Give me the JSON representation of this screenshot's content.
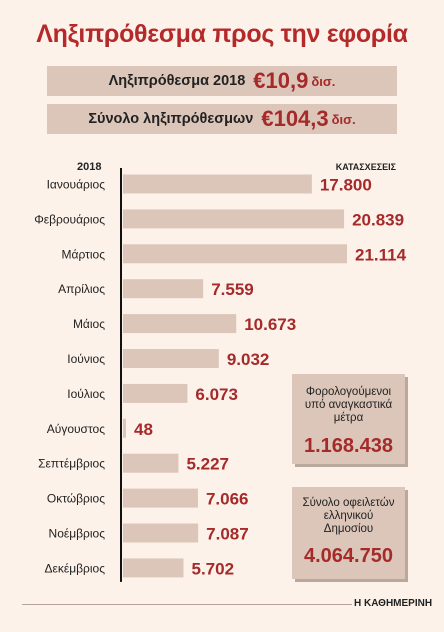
{
  "title": "Ληξιπρόθεσμα προς την εφορία",
  "stat1": {
    "label": "Ληξιπρόθεσμα 2018",
    "value": "€10,9",
    "unit": "δισ."
  },
  "stat2": {
    "label": "Σύνολο ληξιπρόθεσμων",
    "value": "€104,3",
    "unit": "δισ."
  },
  "year_label": "2018",
  "column_header": "ΚΑΤΑΣΧΕΣΕΙΣ",
  "side1": {
    "label": "Φορολογούμενοι υπό αναγκαστικά μέτρα",
    "value": "1.168.438"
  },
  "side2": {
    "label": "Σύνολο οφειλετών ελληνικού Δημοσίου",
    "value": "4.064.750"
  },
  "source": "Η ΚΑΘΗΜΕΡΙΝΗ",
  "colors": {
    "bar": "#dcc6b9",
    "accent": "#a52a2a",
    "axis": "#111111"
  },
  "chart_data": {
    "type": "bar",
    "orientation": "horizontal",
    "title": "",
    "xlabel": "",
    "ylabel": "",
    "categories": [
      "Ιανουάριος",
      "Φεβρουάριος",
      "Μάρτιος",
      "Απρίλιος",
      "Μάιος",
      "Ιούνιος",
      "Ιούλιος",
      "Αύγουστος",
      "Σεπτέμβριος",
      "Οκτώβριος",
      "Νοέμβριος",
      "Δεκέμβριος"
    ],
    "values": [
      17800,
      20839,
      21114,
      7559,
      10673,
      9032,
      6073,
      48,
      5227,
      7066,
      7087,
      5702
    ],
    "value_labels": [
      "17.800",
      "20.839",
      "21.114",
      "7.559",
      "10.673",
      "9.032",
      "6.073",
      "48",
      "5.227",
      "7.066",
      "7.087",
      "5.702"
    ],
    "xlim": [
      0,
      21114
    ],
    "grid": false,
    "legend": "none"
  }
}
